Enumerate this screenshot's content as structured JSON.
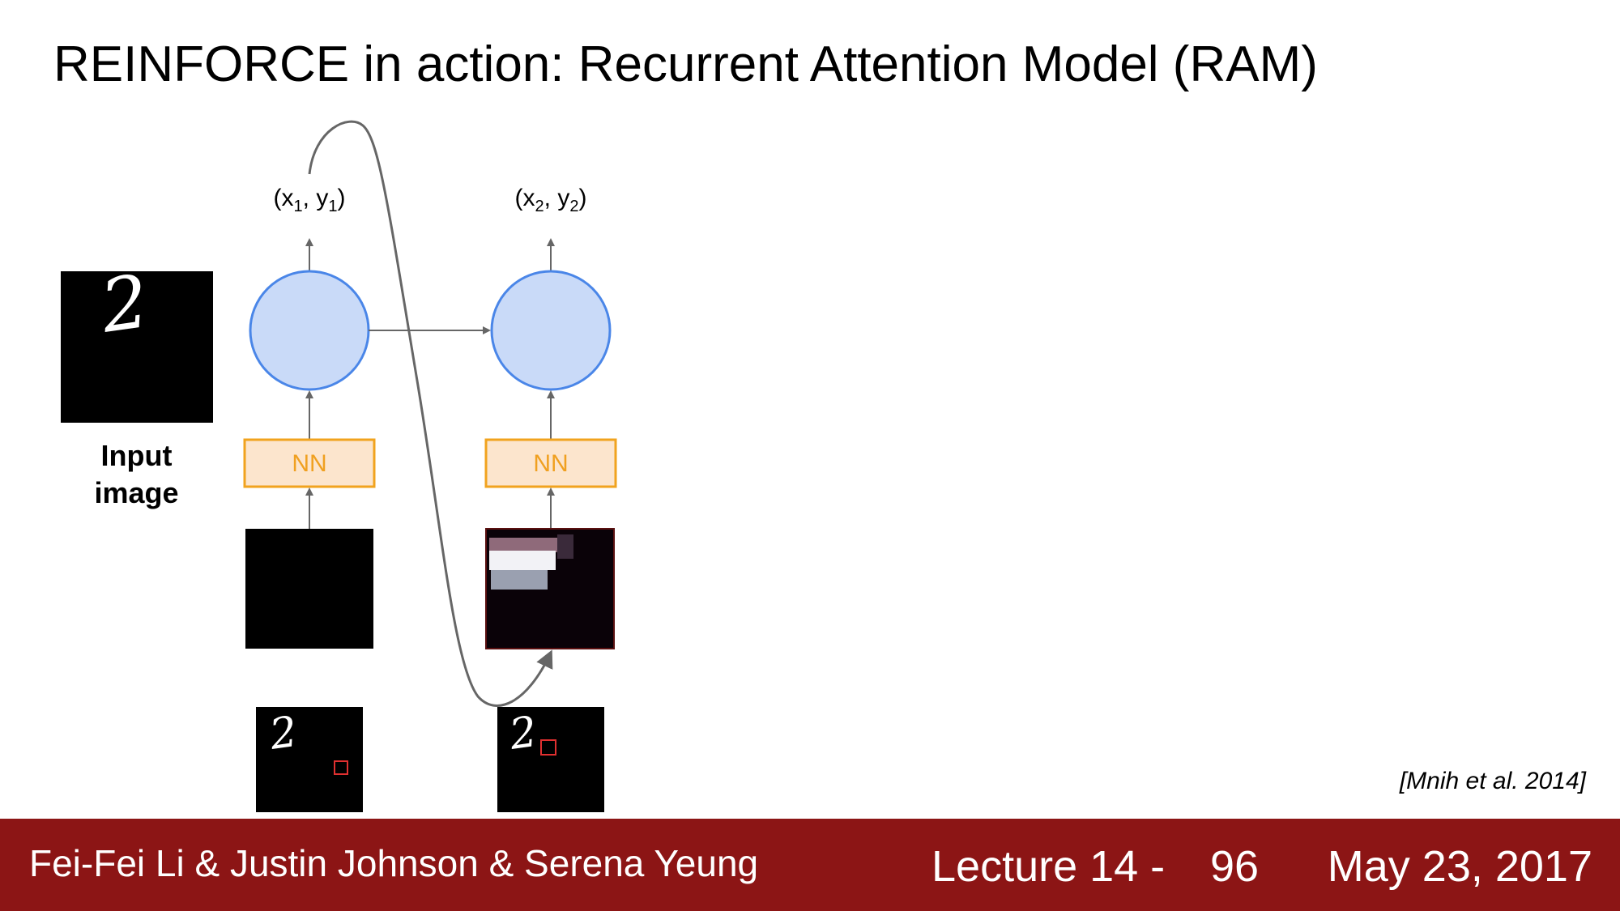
{
  "slide": {
    "title": "REINFORCE in action: Recurrent Attention Model (RAM)",
    "citation": "[Mnih et al. 2014]"
  },
  "diagram": {
    "input_label_line1": "Input",
    "input_label_line2": "image",
    "steps": [
      {
        "x_label": "x",
        "x_sub": "1",
        "y_label": "y",
        "y_sub": "1",
        "nn_label": "NN"
      },
      {
        "x_label": "x",
        "x_sub": "2",
        "y_label": "y",
        "y_sub": "2",
        "nn_label": "NN"
      }
    ],
    "digit": "2",
    "colors": {
      "rnn_fill": "#c9daf8",
      "rnn_stroke": "#4a86e8",
      "nn_fill": "#fce5cd",
      "nn_stroke": "#f1a31e",
      "arrow": "#666666",
      "glimpse_box": "#e03030"
    }
  },
  "footer": {
    "authors": "Fei-Fei Li & Justin Johnson & Serena Yeung",
    "lecture": "Lecture 14 -",
    "slide_number": "96",
    "date": "May 23, 2017",
    "background": "#8c1515"
  }
}
